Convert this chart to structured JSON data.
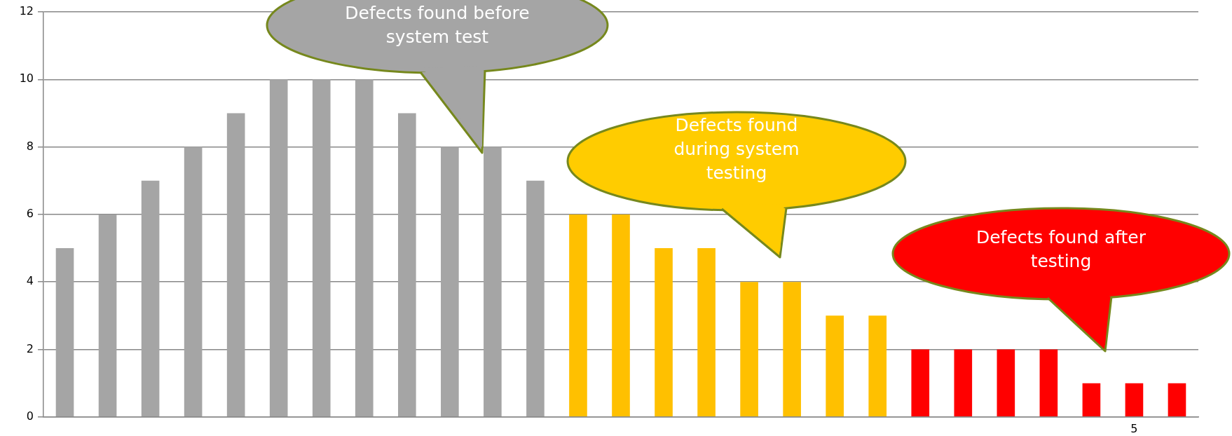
{
  "chart_data": {
    "type": "bar",
    "categories": [
      null,
      null,
      null,
      null,
      null,
      null,
      null,
      null,
      null,
      null,
      null,
      null,
      null,
      null,
      null,
      null,
      null,
      null,
      null,
      null,
      null,
      null,
      null,
      null,
      null,
      "5",
      null
    ],
    "values": [
      5,
      6,
      7,
      8,
      9,
      10,
      10,
      10,
      9,
      8,
      8,
      7,
      6,
      6,
      5,
      5,
      4,
      4,
      3,
      3,
      2,
      2,
      2,
      2,
      1,
      1,
      1
    ],
    "colors": [
      "#a5a5a5",
      "#a5a5a5",
      "#a5a5a5",
      "#a5a5a5",
      "#a5a5a5",
      "#a5a5a5",
      "#a5a5a5",
      "#a5a5a5",
      "#a5a5a5",
      "#a5a5a5",
      "#a5a5a5",
      "#a5a5a5",
      "#ffc000",
      "#ffc000",
      "#ffc000",
      "#ffc000",
      "#ffc000",
      "#ffc000",
      "#ffc000",
      "#ffc000",
      "#ff0000",
      "#ff0000",
      "#ff0000",
      "#ff0000",
      "#ff0000",
      "#ff0000",
      "#ff0000"
    ],
    "ylim": [
      0,
      12
    ],
    "yticks": [
      0,
      2,
      4,
      6,
      8,
      10,
      12
    ],
    "grid": "y",
    "legend": false,
    "annotations": [
      "Defects found before system test",
      "Defects found during system testing",
      "Defects found after testing"
    ]
  }
}
